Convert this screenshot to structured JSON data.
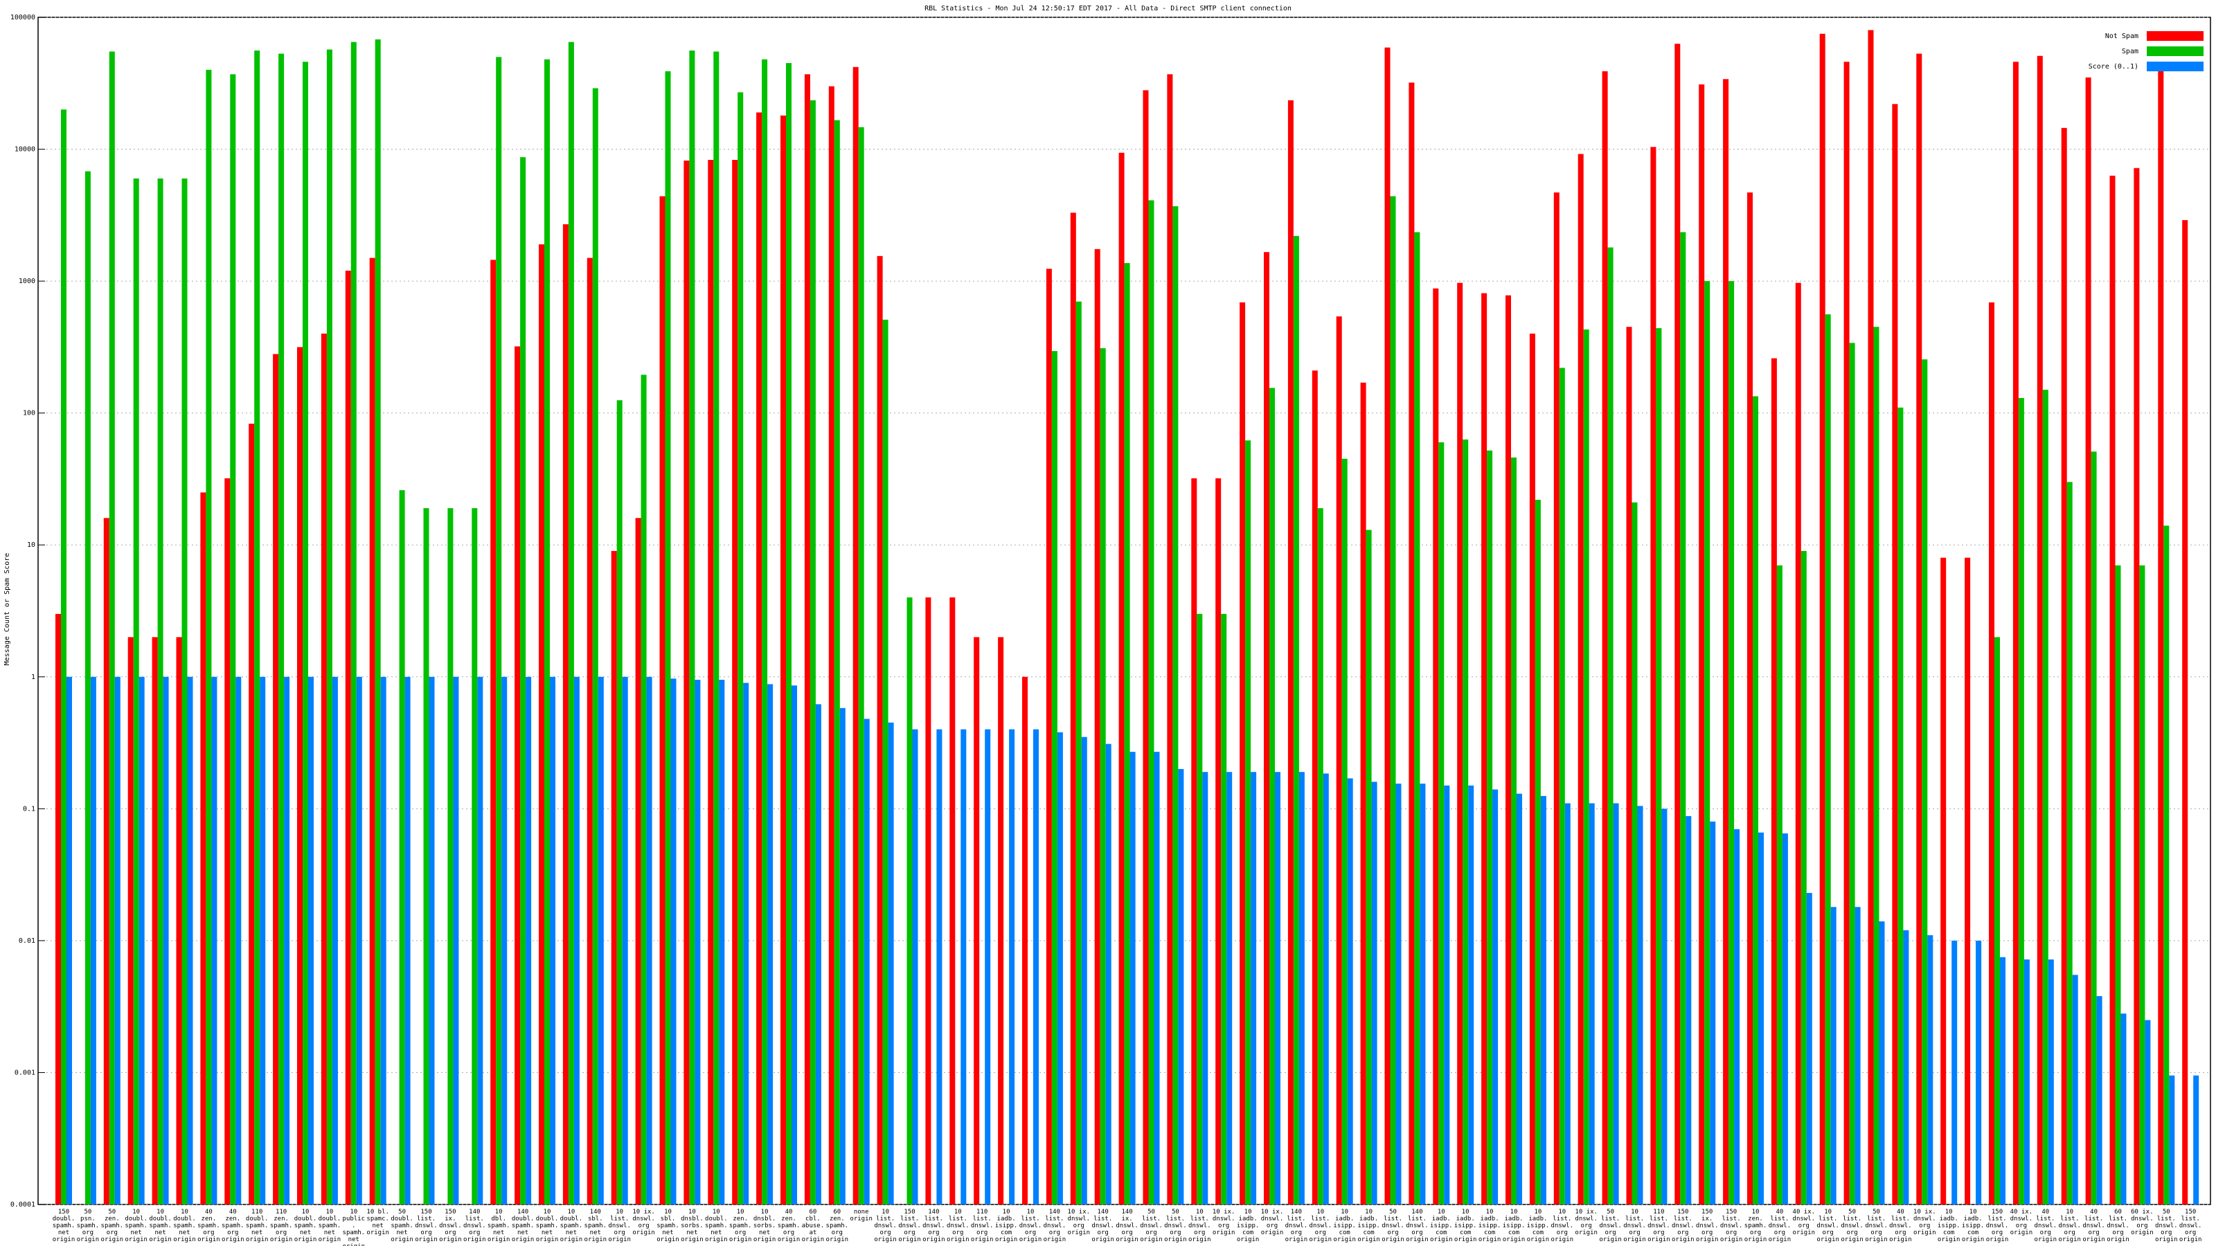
{
  "chart_data": {
    "type": "bar",
    "title": "RBL Statistics - Mon Jul 24 12:50:17 EDT 2017 - All Data - Direct SMTP client connection",
    "y_label": "Message Count or Spam Score",
    "log_scale": true,
    "grid": true,
    "legend": "top-right",
    "categories": [
      "150 doubl. spamh. net origin",
      "50 psn. spamh. org origin",
      "50 zen. spamh. org origin",
      "10 doubl. spamh. net origin",
      "10 doubl. spamh. net origin",
      "10 doubl. spamh. net origin",
      "40 zen. spamh. org origin",
      "40 zen. spamh. org origin",
      "110 doubl. spamh. net origin",
      "110 zen. spamh. org origin",
      "10 doubl. spamh. net origin",
      "10 doubl. spamh. net origin",
      "10 public. spamh. net origin",
      "10 bl. spamc. net origin",
      "50 doubl. spamh. net origin",
      "150 list. dnswl. org origin",
      "150 ix. dnswl. org origin",
      "140 list. dnswl. org origin",
      "10 dbl. spamh. net origin",
      "140 doubl. spamh. net origin",
      "10 doubl. spamh. net origin",
      "10 doubl. spamh. net origin",
      "140 sbl. spamh. net origin",
      "10 list. dnswl. org origin",
      "10 ix. dnswl. org origin",
      "10 sbl. spamh. net origin",
      "10 dnsbl. sorbs. net origin",
      "10 doubl. spamh. net origin",
      "10 zen. spamh. org origin",
      "10 dnsbl. sorbs. net origin",
      "40 zen. spamh. org origin",
      "60 cbl. abuse. at origin",
      "60 zen. spamh. org origin",
      "none origin",
      "10 list. dnswl. org origin",
      "150 list. dnswl. org origin",
      "140 list. dnswl. org origin",
      "10 list. dnswl. org origin",
      "110 list. dnswl. org origin",
      "10 iadb. isipp. com origin",
      "10 list. dnswl. org origin",
      "140 list. dnswl. org origin",
      "10 ix. dnswl. org origin",
      "140 list. dnswl. org origin",
      "140 ix. dnswl. org origin",
      "50 list. dnswl. org origin",
      "50 list. dnswl. org origin",
      "10 list. dnswl. org origin",
      "10 ix. dnswl. org origin",
      "10 iadb. isipp. com origin",
      "10 ix. dnswl. org origin",
      "140 list. dnswl. org origin",
      "10 list. dnswl. org origin",
      "10 iadb. isipp. com origin",
      "10 iadb. isipp. com origin",
      "50 list. dnswl. org origin",
      "140 list. dnswl. org origin",
      "10 iadb. isipp. com origin",
      "10 iadb. isipp. com origin",
      "10 iadb. isipp. com origin",
      "10 iadb. isipp. com origin",
      "10 iadb. isipp. com origin",
      "10 list. dnswl. org origin",
      "10 ix. dnswl. org origin",
      "50 list. dnswl. org origin",
      "10 list. dnswl. org origin",
      "110 list. dnswl. org origin",
      "150 list. dnswl. org origin",
      "150 ix. dnswl. org origin",
      "150 list. dnswl. org origin",
      "10 zen. spamh. org origin",
      "40 list. dnswl. org origin",
      "40 ix. dnswl. org origin",
      "10 list. dnswl. org origin",
      "50 list. dnswl. org origin",
      "50 list. dnswl. org origin",
      "40 list. dnswl. org origin",
      "10 ix. dnswl. org origin",
      "10 iadb. isipp. com origin",
      "10 iadb. isipp. com origin",
      "150 list. dnswl. org origin",
      "40 ix. dnswl. org origin",
      "40 list. dnswl. org origin",
      "10 list. dnswl. org origin",
      "40 list. dnswl. org origin",
      "60 list. dnswl. org origin",
      "60 ix. dnswl. org origin",
      "50 list. dnswl. org origin",
      "150 list. dnswl. org origin"
    ],
    "series": [
      {
        "name": "Not Spam",
        "color": "#ff0000",
        "values": [
          3,
          null,
          16,
          2,
          2,
          2,
          25,
          32,
          83,
          280,
          316,
          400,
          1200,
          1500,
          null,
          null,
          null,
          null,
          1450,
          320,
          1900,
          2700,
          1500,
          9,
          16,
          4400,
          8200,
          8300,
          8300,
          19000,
          18000,
          37000,
          30000,
          42000,
          1550,
          null,
          4,
          4,
          2,
          2,
          1,
          1240,
          3300,
          1750,
          9400,
          28000,
          37000,
          32,
          32,
          690,
          1660,
          23500,
          210,
          540,
          170,
          59000,
          32000,
          880,
          970,
          810,
          780,
          400,
          4700,
          9200,
          39000,
          450,
          10400,
          63000,
          31000,
          34000,
          4700,
          260,
          970,
          75000,
          46000,
          80000,
          22000,
          53000,
          8,
          8,
          690,
          46000,
          51000,
          14500,
          35000,
          6300,
          7200,
          40000,
          2900
        ]
      },
      {
        "name": "Spam",
        "color": "#00c000",
        "values": [
          20000,
          6800,
          55000,
          6000,
          6000,
          6000,
          40000,
          37000,
          56000,
          53000,
          46000,
          57000,
          65000,
          68000,
          26,
          19,
          19,
          19,
          50000,
          8700,
          48000,
          65000,
          29000,
          125,
          195,
          39000,
          56000,
          55000,
          27000,
          48000,
          45000,
          23500,
          16600,
          14700,
          510,
          4,
          null,
          null,
          null,
          null,
          null,
          295,
          700,
          310,
          1370,
          4100,
          3700,
          3,
          3,
          62,
          155,
          2200,
          19,
          45,
          13,
          4400,
          2350,
          60,
          63,
          52,
          46,
          22,
          220,
          430,
          1800,
          21,
          440,
          2350,
          1000,
          1000,
          134,
          7,
          9,
          560,
          340,
          450,
          110,
          255,
          null,
          null,
          2,
          130,
          150,
          30,
          51,
          7,
          7,
          14,
          null
        ]
      },
      {
        "name": "Score (0..1)",
        "color": "#0080ff",
        "values": [
          1,
          1,
          1,
          1,
          1,
          1,
          1,
          1,
          1,
          1,
          1,
          1,
          1,
          1,
          1,
          1,
          1,
          1,
          1,
          1,
          1,
          1,
          1,
          1,
          1,
          0.97,
          0.95,
          0.95,
          0.9,
          0.88,
          0.86,
          0.62,
          0.58,
          0.48,
          0.45,
          0.4,
          0.4,
          0.4,
          0.4,
          0.4,
          0.4,
          0.38,
          0.35,
          0.31,
          0.27,
          0.27,
          0.2,
          0.19,
          0.19,
          0.19,
          0.19,
          0.19,
          0.185,
          0.17,
          0.16,
          0.155,
          0.155,
          0.15,
          0.15,
          0.14,
          0.13,
          0.125,
          0.11,
          0.11,
          0.11,
          0.105,
          0.1,
          0.088,
          0.08,
          0.07,
          0.066,
          0.065,
          0.023,
          0.018,
          0.018,
          0.014,
          0.012,
          0.011,
          0.01,
          0.01,
          0.0075,
          0.0072,
          0.0072,
          0.0055,
          0.0038,
          0.0028,
          0.0025,
          0.00095,
          0.00095
        ]
      }
    ],
    "ylim": [
      0.0001,
      100000
    ],
    "yticks": [
      0.0001,
      0.001,
      0.01,
      0.1,
      1,
      10,
      100,
      1000,
      10000,
      100000
    ]
  }
}
